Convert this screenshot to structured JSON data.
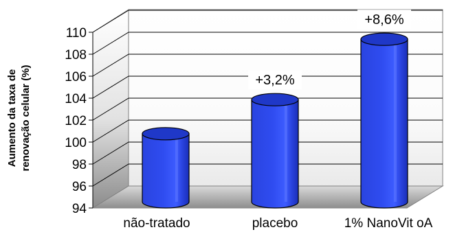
{
  "chart_data": {
    "type": "bar",
    "style": "3d-cylinder",
    "categories": [
      "não-tratado",
      "placebo",
      "1% NanoVit oA"
    ],
    "values": [
      100.2,
      103.3,
      108.8
    ],
    "data_labels": [
      "",
      "+3,2%",
      "+8,6%"
    ],
    "ylabel_lines": [
      "Aumento da taxa de",
      "renovação celular (%)"
    ],
    "ylim": [
      94,
      110
    ],
    "yticks": [
      94,
      96,
      98,
      100,
      102,
      104,
      106,
      108,
      110
    ],
    "grid": true,
    "legend": "none",
    "colors": {
      "bar": "#2c48e6",
      "bar_highlight": "#5f78ff",
      "bar_top": "#1f38c8",
      "back_wall": "#ffffff",
      "side_wall_top": "#ffffff",
      "side_wall_bottom": "#8a8a8a",
      "floor": "#9a9a9a"
    }
  }
}
